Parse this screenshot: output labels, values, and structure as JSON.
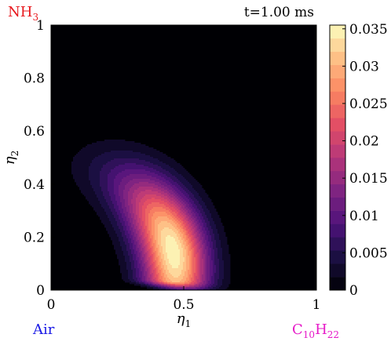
{
  "chart_data": {
    "type": "heatmap",
    "subtype": "filled-contour",
    "corner_labels": {
      "top_left": {
        "base": "NH",
        "sub": "3",
        "color": "#e8191e"
      },
      "top_right": "t=1.00 ms",
      "bottom_left": {
        "text": "Air",
        "color": "#1a1ae6"
      },
      "bottom_right": {
        "base": "C",
        "sub1": "10",
        "mid": "H",
        "sub2": "22",
        "color": "#e619c8"
      }
    },
    "xlabel": {
      "base": "η",
      "sub": "1"
    },
    "ylabel": {
      "base": "η",
      "sub": "2"
    },
    "xlim": [
      0,
      1
    ],
    "ylim": [
      0,
      1
    ],
    "xticks": [
      "0",
      "0.5",
      "1"
    ],
    "yticks": [
      "0",
      "0.2",
      "0.4",
      "0.6",
      "0.8",
      "1"
    ],
    "colorbar": {
      "range": [
        0,
        0.0355
      ],
      "ticks": [
        "0",
        "0.005",
        "0.01",
        "0.015",
        "0.02",
        "0.025",
        "0.03",
        "0.035"
      ],
      "levels": 20,
      "colormap": "magma"
    },
    "field": {
      "description_free_parameters": true,
      "arc_center": [
        0.05,
        0.05
      ],
      "arc_radius": 0.42,
      "radial_width": 0.085,
      "peak_angle_deg": 13,
      "angle_width_deg": 30,
      "peak_value": 0.0352
    },
    "grid": false
  }
}
